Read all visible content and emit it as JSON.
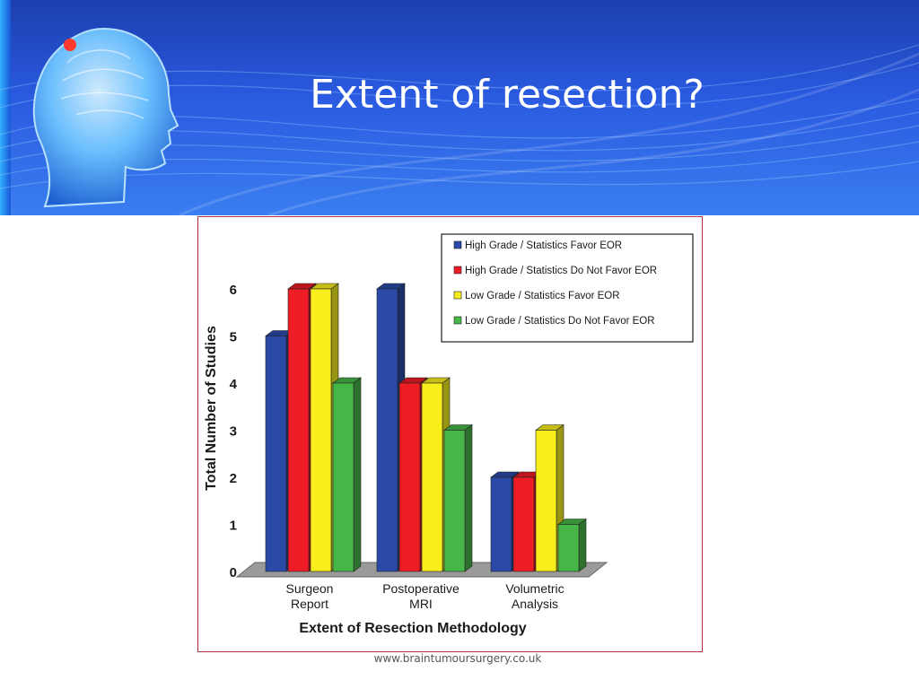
{
  "slide": {
    "title": "Extent of resection?",
    "footer_url": "www.braintumoursurgery.co.uk"
  },
  "chart_data": {
    "type": "bar",
    "categories": [
      "Surgeon\nReport",
      "Postoperative\nMRI",
      "Volumetric\nAnalysis"
    ],
    "series": [
      {
        "name": "High Grade /  Statistics Favor EOR",
        "color": "#2b4aa8",
        "values": [
          5,
          6,
          2
        ]
      },
      {
        "name": "High Grade / Statistics Do Not Favor EOR",
        "color": "#ee1c24",
        "values": [
          6,
          4,
          2
        ]
      },
      {
        "name": "Low Grade /  Statistics Favor EOR",
        "color": "#f7ee1c",
        "values": [
          6,
          4,
          3
        ]
      },
      {
        "name": "Low Grade / Statistics Do Not Favor EOR",
        "color": "#47b649",
        "values": [
          4,
          3,
          1
        ]
      }
    ],
    "xlabel": "Extent of Resection Methodology",
    "ylabel": "Total Number of Studies",
    "ylim": [
      0,
      6
    ],
    "yticks": [
      "0",
      "1",
      "2",
      "3",
      "4",
      "5",
      "6"
    ],
    "grid": false,
    "legend_position": "top-right",
    "style": "3d"
  },
  "colors": {
    "banner_dark": "#1b3fae",
    "banner_light": "#3a7ef0",
    "frame_border": "#b4323e"
  }
}
